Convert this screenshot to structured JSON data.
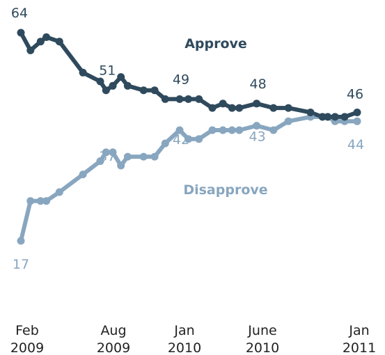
{
  "chart_data": {
    "type": "line",
    "title": "",
    "xlabel": "",
    "ylabel": "",
    "grid": false,
    "x_ticks": [
      {
        "month": "Feb",
        "year": "2009",
        "x": "2009-02"
      },
      {
        "month": "Aug",
        "year": "2009",
        "x": "2009-08"
      },
      {
        "month": "Jan",
        "year": "2010",
        "x": "2010-01"
      },
      {
        "month": "June",
        "year": "2010",
        "x": "2010-06"
      },
      {
        "month": "Jan",
        "year": "2011",
        "x": "2011-01"
      }
    ],
    "series": [
      {
        "name": "Approve",
        "color": "#2f4a5d",
        "points": [
          {
            "x": "2009-02-05",
            "y": 64
          },
          {
            "x": "2009-02-25",
            "y": 60
          },
          {
            "x": "2009-03-18",
            "y": 62
          },
          {
            "x": "2009-03-30",
            "y": 63
          },
          {
            "x": "2009-04-26",
            "y": 62
          },
          {
            "x": "2009-06-14",
            "y": 55
          },
          {
            "x": "2009-07-20",
            "y": 53
          },
          {
            "x": "2009-08-01",
            "y": 51
          },
          {
            "x": "2009-08-15",
            "y": 52
          },
          {
            "x": "2009-09-01",
            "y": 54
          },
          {
            "x": "2009-09-15",
            "y": 52
          },
          {
            "x": "2009-10-18",
            "y": 51
          },
          {
            "x": "2009-11-10",
            "y": 51
          },
          {
            "x": "2009-12-02",
            "y": 49
          },
          {
            "x": "2010-01-01",
            "y": 49
          },
          {
            "x": "2010-01-19",
            "y": 49
          },
          {
            "x": "2010-02-10",
            "y": 49
          },
          {
            "x": "2010-03-10",
            "y": 47
          },
          {
            "x": "2010-04-01",
            "y": 48
          },
          {
            "x": "2010-04-20",
            "y": 47
          },
          {
            "x": "2010-05-05",
            "y": 47
          },
          {
            "x": "2010-06-10",
            "y": 48
          },
          {
            "x": "2010-07-15",
            "y": 47
          },
          {
            "x": "2010-08-15",
            "y": 47
          },
          {
            "x": "2010-09-30",
            "y": 46
          },
          {
            "x": "2010-10-25",
            "y": 45
          },
          {
            "x": "2010-11-05",
            "y": 45
          },
          {
            "x": "2010-11-20",
            "y": 45
          },
          {
            "x": "2010-12-10",
            "y": 45
          },
          {
            "x": "2011-01-05",
            "y": 46
          }
        ],
        "labels": [
          {
            "x": "2009-02-05",
            "y": 64,
            "text": "64"
          },
          {
            "x": "2009-08-01",
            "y": 51,
            "text": "51"
          },
          {
            "x": "2010-01-01",
            "y": 49,
            "text": "49"
          },
          {
            "x": "2010-06-10",
            "y": 48,
            "text": "48"
          },
          {
            "x": "2011-01-05",
            "y": 46,
            "text": "46"
          }
        ]
      },
      {
        "name": "Disapprove",
        "color": "#88a6bf",
        "points": [
          {
            "x": "2009-02-05",
            "y": 17
          },
          {
            "x": "2009-02-25",
            "y": 26
          },
          {
            "x": "2009-03-18",
            "y": 26
          },
          {
            "x": "2009-03-30",
            "y": 26
          },
          {
            "x": "2009-04-26",
            "y": 28
          },
          {
            "x": "2009-06-14",
            "y": 32
          },
          {
            "x": "2009-07-20",
            "y": 35
          },
          {
            "x": "2009-08-01",
            "y": 37
          },
          {
            "x": "2009-08-15",
            "y": 37
          },
          {
            "x": "2009-09-01",
            "y": 34
          },
          {
            "x": "2009-09-15",
            "y": 36
          },
          {
            "x": "2009-10-18",
            "y": 36
          },
          {
            "x": "2009-11-10",
            "y": 36
          },
          {
            "x": "2009-12-02",
            "y": 39
          },
          {
            "x": "2010-01-01",
            "y": 42
          },
          {
            "x": "2010-01-19",
            "y": 40
          },
          {
            "x": "2010-02-10",
            "y": 40
          },
          {
            "x": "2010-03-10",
            "y": 42
          },
          {
            "x": "2010-04-01",
            "y": 42
          },
          {
            "x": "2010-04-20",
            "y": 42
          },
          {
            "x": "2010-05-05",
            "y": 42
          },
          {
            "x": "2010-06-10",
            "y": 43
          },
          {
            "x": "2010-07-15",
            "y": 42
          },
          {
            "x": "2010-08-15",
            "y": 44
          },
          {
            "x": "2010-09-30",
            "y": 45
          },
          {
            "x": "2010-10-25",
            "y": 45
          },
          {
            "x": "2010-11-05",
            "y": 45
          },
          {
            "x": "2010-11-20",
            "y": 44
          },
          {
            "x": "2010-12-10",
            "y": 44
          },
          {
            "x": "2011-01-05",
            "y": 44
          }
        ],
        "labels": [
          {
            "x": "2009-02-05",
            "y": 17,
            "text": "17"
          },
          {
            "x": "2009-08-01",
            "y": 37,
            "text": "37"
          },
          {
            "x": "2010-01-01",
            "y": 42,
            "text": "42"
          },
          {
            "x": "2010-06-10",
            "y": 43,
            "text": "43"
          },
          {
            "x": "2011-01-05",
            "y": 44,
            "text": "44"
          }
        ]
      }
    ]
  }
}
